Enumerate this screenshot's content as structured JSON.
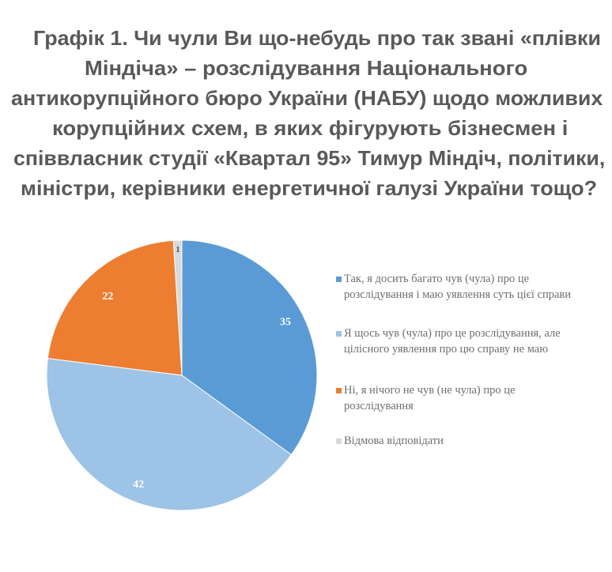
{
  "title": {
    "lines": [
      "Графік 1. Чи чули Ви що-небудь про так звані «плівки",
      "Міндіча» – розслідування Національного",
      "антикорупційного бюро України (НАБУ) щодо можливих",
      "корупційних схем, в яких фігурують бізнесмен і",
      "співвласник студії «Квартал 95» Тимур Міндіч, політики,",
      "міністри, керівники енергетичної галузі України тощо?"
    ]
  },
  "legend": {
    "items": [
      {
        "label": "Так, я досить багато чув (чула) про це розслідування і маю уявлення суть цієї справи",
        "color": "#5B9BD5"
      },
      {
        "label": "Я щось чув (чула) про це розслідування, але цілісного уявлення про цю справу не маю",
        "color": "#9DC3E6"
      },
      {
        "label": "Ні, я нічого не чув (не чула) про це розслідування",
        "color": "#ED7D31"
      },
      {
        "label": "Відмова відповідати",
        "color": "#D9D9D9"
      }
    ]
  },
  "chart_data": {
    "type": "pie",
    "title": "Графік 1. Чи чули Ви що-небудь про так звані «плівки Міндіча» – розслідування Національного антикорупційного бюро України (НАБУ) щодо можливих корупційних схем, в яких фігурують бізнесмен і співвласник студії «Квартал 95» Тимур Міндіч, політики, міністри, керівники енергетичної галузі України тощо?",
    "categories": [
      "Так, я досить багато чув (чула) про це розслідування і маю уявлення суть цієї справи",
      "Я щось чув (чула) про це розслідування, але цілісного уявлення про цю справу не маю",
      "Ні, я нічого не чув (не чула) про це розслідування",
      "Відмова відповідати"
    ],
    "values": [
      35,
      42,
      22,
      1
    ],
    "labels": [
      "35",
      "42",
      "22",
      "1"
    ],
    "colors": [
      "#5B9BD5",
      "#9DC3E6",
      "#ED7D31",
      "#D9D9D9"
    ],
    "start_angle_deg": 0,
    "direction": "clockwise",
    "legend_position": "right",
    "unit": "%"
  }
}
